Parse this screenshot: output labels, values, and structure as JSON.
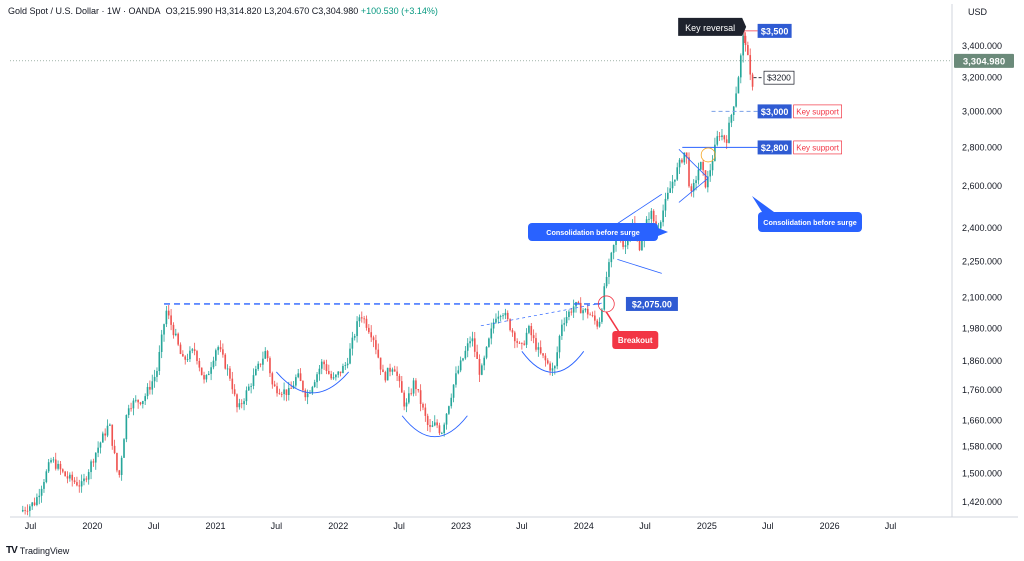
{
  "header": {
    "symbol": "Gold Spot / U.S. Dollar · 1W · OANDA",
    "open": "O3,215.990",
    "high": "H3,314.820",
    "low": "L3,204.670",
    "close": "C3,304.980",
    "change": "+100.530 (+3.14%)"
  },
  "branding": {
    "name": "TradingView"
  },
  "colors": {
    "up": "#26a69a",
    "down": "#ef5350",
    "annotation_blue": "#2962ff",
    "label_blue": "#2f5bd3",
    "breakout_red": "#f23645",
    "dark_label": "#1e222d",
    "current_price": "#6b8a7a"
  },
  "chart_data": {
    "type": "candlestick",
    "currency": "USD",
    "y_scale": "log",
    "ylim": [
      1380,
      3560
    ],
    "y_ticks": [
      1420,
      1500,
      1580,
      1660,
      1760,
      1860,
      1980,
      2100,
      2250,
      2400,
      2600,
      2800,
      3000,
      3200,
      3400
    ],
    "y_tick_labels": [
      "1,420.000",
      "1,500.000",
      "1,580.000",
      "1,660.000",
      "1,760.000",
      "1,860.000",
      "1,980.000",
      "2,100.000",
      "2,250.000",
      "2,400.000",
      "2,600.000",
      "2,800.000",
      "3,000.000",
      "3,200.000",
      "3,400.000"
    ],
    "x_range": [
      "2019-05-01",
      "2026-12-31"
    ],
    "x_ticks": [
      {
        "date": "2019-07-01",
        "label": "Jul"
      },
      {
        "date": "2020-01-01",
        "label": "2020"
      },
      {
        "date": "2020-07-01",
        "label": "Jul"
      },
      {
        "date": "2021-01-01",
        "label": "2021"
      },
      {
        "date": "2021-07-01",
        "label": "Jul"
      },
      {
        "date": "2022-01-01",
        "label": "2022"
      },
      {
        "date": "2022-07-01",
        "label": "Jul"
      },
      {
        "date": "2023-01-01",
        "label": "2023"
      },
      {
        "date": "2023-07-01",
        "label": "Jul"
      },
      {
        "date": "2024-01-01",
        "label": "2024"
      },
      {
        "date": "2024-07-01",
        "label": "Jul"
      },
      {
        "date": "2025-01-01",
        "label": "2025"
      },
      {
        "date": "2025-07-01",
        "label": "Jul"
      },
      {
        "date": "2026-01-01",
        "label": "2026"
      },
      {
        "date": "2026-07-01",
        "label": "Jul"
      }
    ],
    "series": [
      {
        "name": "Gold Spot / U.S. Dollar",
        "path": [
          [
            "2019-06-01",
            1395
          ],
          [
            "2019-07-15",
            1420
          ],
          [
            "2019-09-01",
            1540
          ],
          [
            "2019-10-15",
            1490
          ],
          [
            "2019-12-01",
            1465
          ],
          [
            "2020-01-10",
            1560
          ],
          [
            "2020-02-20",
            1650
          ],
          [
            "2020-03-19",
            1480
          ],
          [
            "2020-04-15",
            1710
          ],
          [
            "2020-06-01",
            1730
          ],
          [
            "2020-07-10",
            1820
          ],
          [
            "2020-08-07",
            2050
          ],
          [
            "2020-09-01",
            1960
          ],
          [
            "2020-09-25",
            1860
          ],
          [
            "2020-11-01",
            1900
          ],
          [
            "2020-11-30",
            1780
          ],
          [
            "2021-01-06",
            1920
          ],
          [
            "2021-02-15",
            1800
          ],
          [
            "2021-03-08",
            1690
          ],
          [
            "2021-04-15",
            1780
          ],
          [
            "2021-06-01",
            1900
          ],
          [
            "2021-06-20",
            1770
          ],
          [
            "2021-08-09",
            1750
          ],
          [
            "2021-09-01",
            1810
          ],
          [
            "2021-09-29",
            1740
          ],
          [
            "2021-11-16",
            1860
          ],
          [
            "2021-12-15",
            1790
          ],
          [
            "2022-01-25",
            1850
          ],
          [
            "2022-03-08",
            2040
          ],
          [
            "2022-04-15",
            1950
          ],
          [
            "2022-05-16",
            1800
          ],
          [
            "2022-06-15",
            1850
          ],
          [
            "2022-07-20",
            1700
          ],
          [
            "2022-08-15",
            1790
          ],
          [
            "2022-09-28",
            1630
          ],
          [
            "2022-10-20",
            1650
          ],
          [
            "2022-11-03",
            1620
          ],
          [
            "2022-12-15",
            1800
          ],
          [
            "2023-02-01",
            1950
          ],
          [
            "2023-02-28",
            1810
          ],
          [
            "2023-04-13",
            2030
          ],
          [
            "2023-05-04",
            2050
          ],
          [
            "2023-06-29",
            1900
          ],
          [
            "2023-07-20",
            1980
          ],
          [
            "2023-08-21",
            1890
          ],
          [
            "2023-10-05",
            1820
          ],
          [
            "2023-10-27",
            2000
          ],
          [
            "2023-12-04",
            2070
          ],
          [
            "2024-01-15",
            2040
          ],
          [
            "2024-02-14",
            1990
          ],
          [
            "2024-03-08",
            2180
          ],
          [
            "2024-04-12",
            2400
          ],
          [
            "2024-05-01",
            2300
          ],
          [
            "2024-05-20",
            2440
          ],
          [
            "2024-06-15",
            2320
          ],
          [
            "2024-07-17",
            2480
          ],
          [
            "2024-08-05",
            2390
          ],
          [
            "2024-09-20",
            2620
          ],
          [
            "2024-10-30",
            2790
          ],
          [
            "2024-11-14",
            2540
          ],
          [
            "2024-12-12",
            2720
          ],
          [
            "2024-12-30",
            2600
          ],
          [
            "2025-02-05",
            2880
          ],
          [
            "2025-02-28",
            2840
          ],
          [
            "2025-04-01",
            3150
          ],
          [
            "2025-04-22",
            3500
          ],
          [
            "2025-05-15",
            3120
          ],
          [
            "2025-05-23",
            3304.98
          ]
        ]
      }
    ],
    "current_price": {
      "value": 3304.98,
      "label": "3,304.980"
    },
    "levels": [
      {
        "value": 2075,
        "label": "$2,075.00",
        "style": "dashed",
        "from": "2020-08-01",
        "to": "2024-03-01"
      },
      {
        "value": 3000,
        "label": "$3,000",
        "note": "Key support",
        "style": "dashed-light",
        "from": "2025-01-15",
        "to": "2025-07-01"
      },
      {
        "value": 2800,
        "label": "$2,800",
        "note": "Key support",
        "style": "solid",
        "from": "2024-10-20",
        "to": "2025-07-01"
      },
      {
        "value": 3500,
        "label": "$3,500",
        "style": "bracket",
        "from": "2025-04-22",
        "to": "2025-07-01"
      },
      {
        "value": 3200,
        "label": "$3200",
        "style": "dashed-dark",
        "from": "2025-05-20",
        "to": "2025-07-01"
      }
    ],
    "annotations": {
      "key_reversal": "Key reversal",
      "breakout": "Breakout",
      "consolidation_left": "Consolidation before surge",
      "consolidation_right": "Consolidation before surge"
    }
  }
}
